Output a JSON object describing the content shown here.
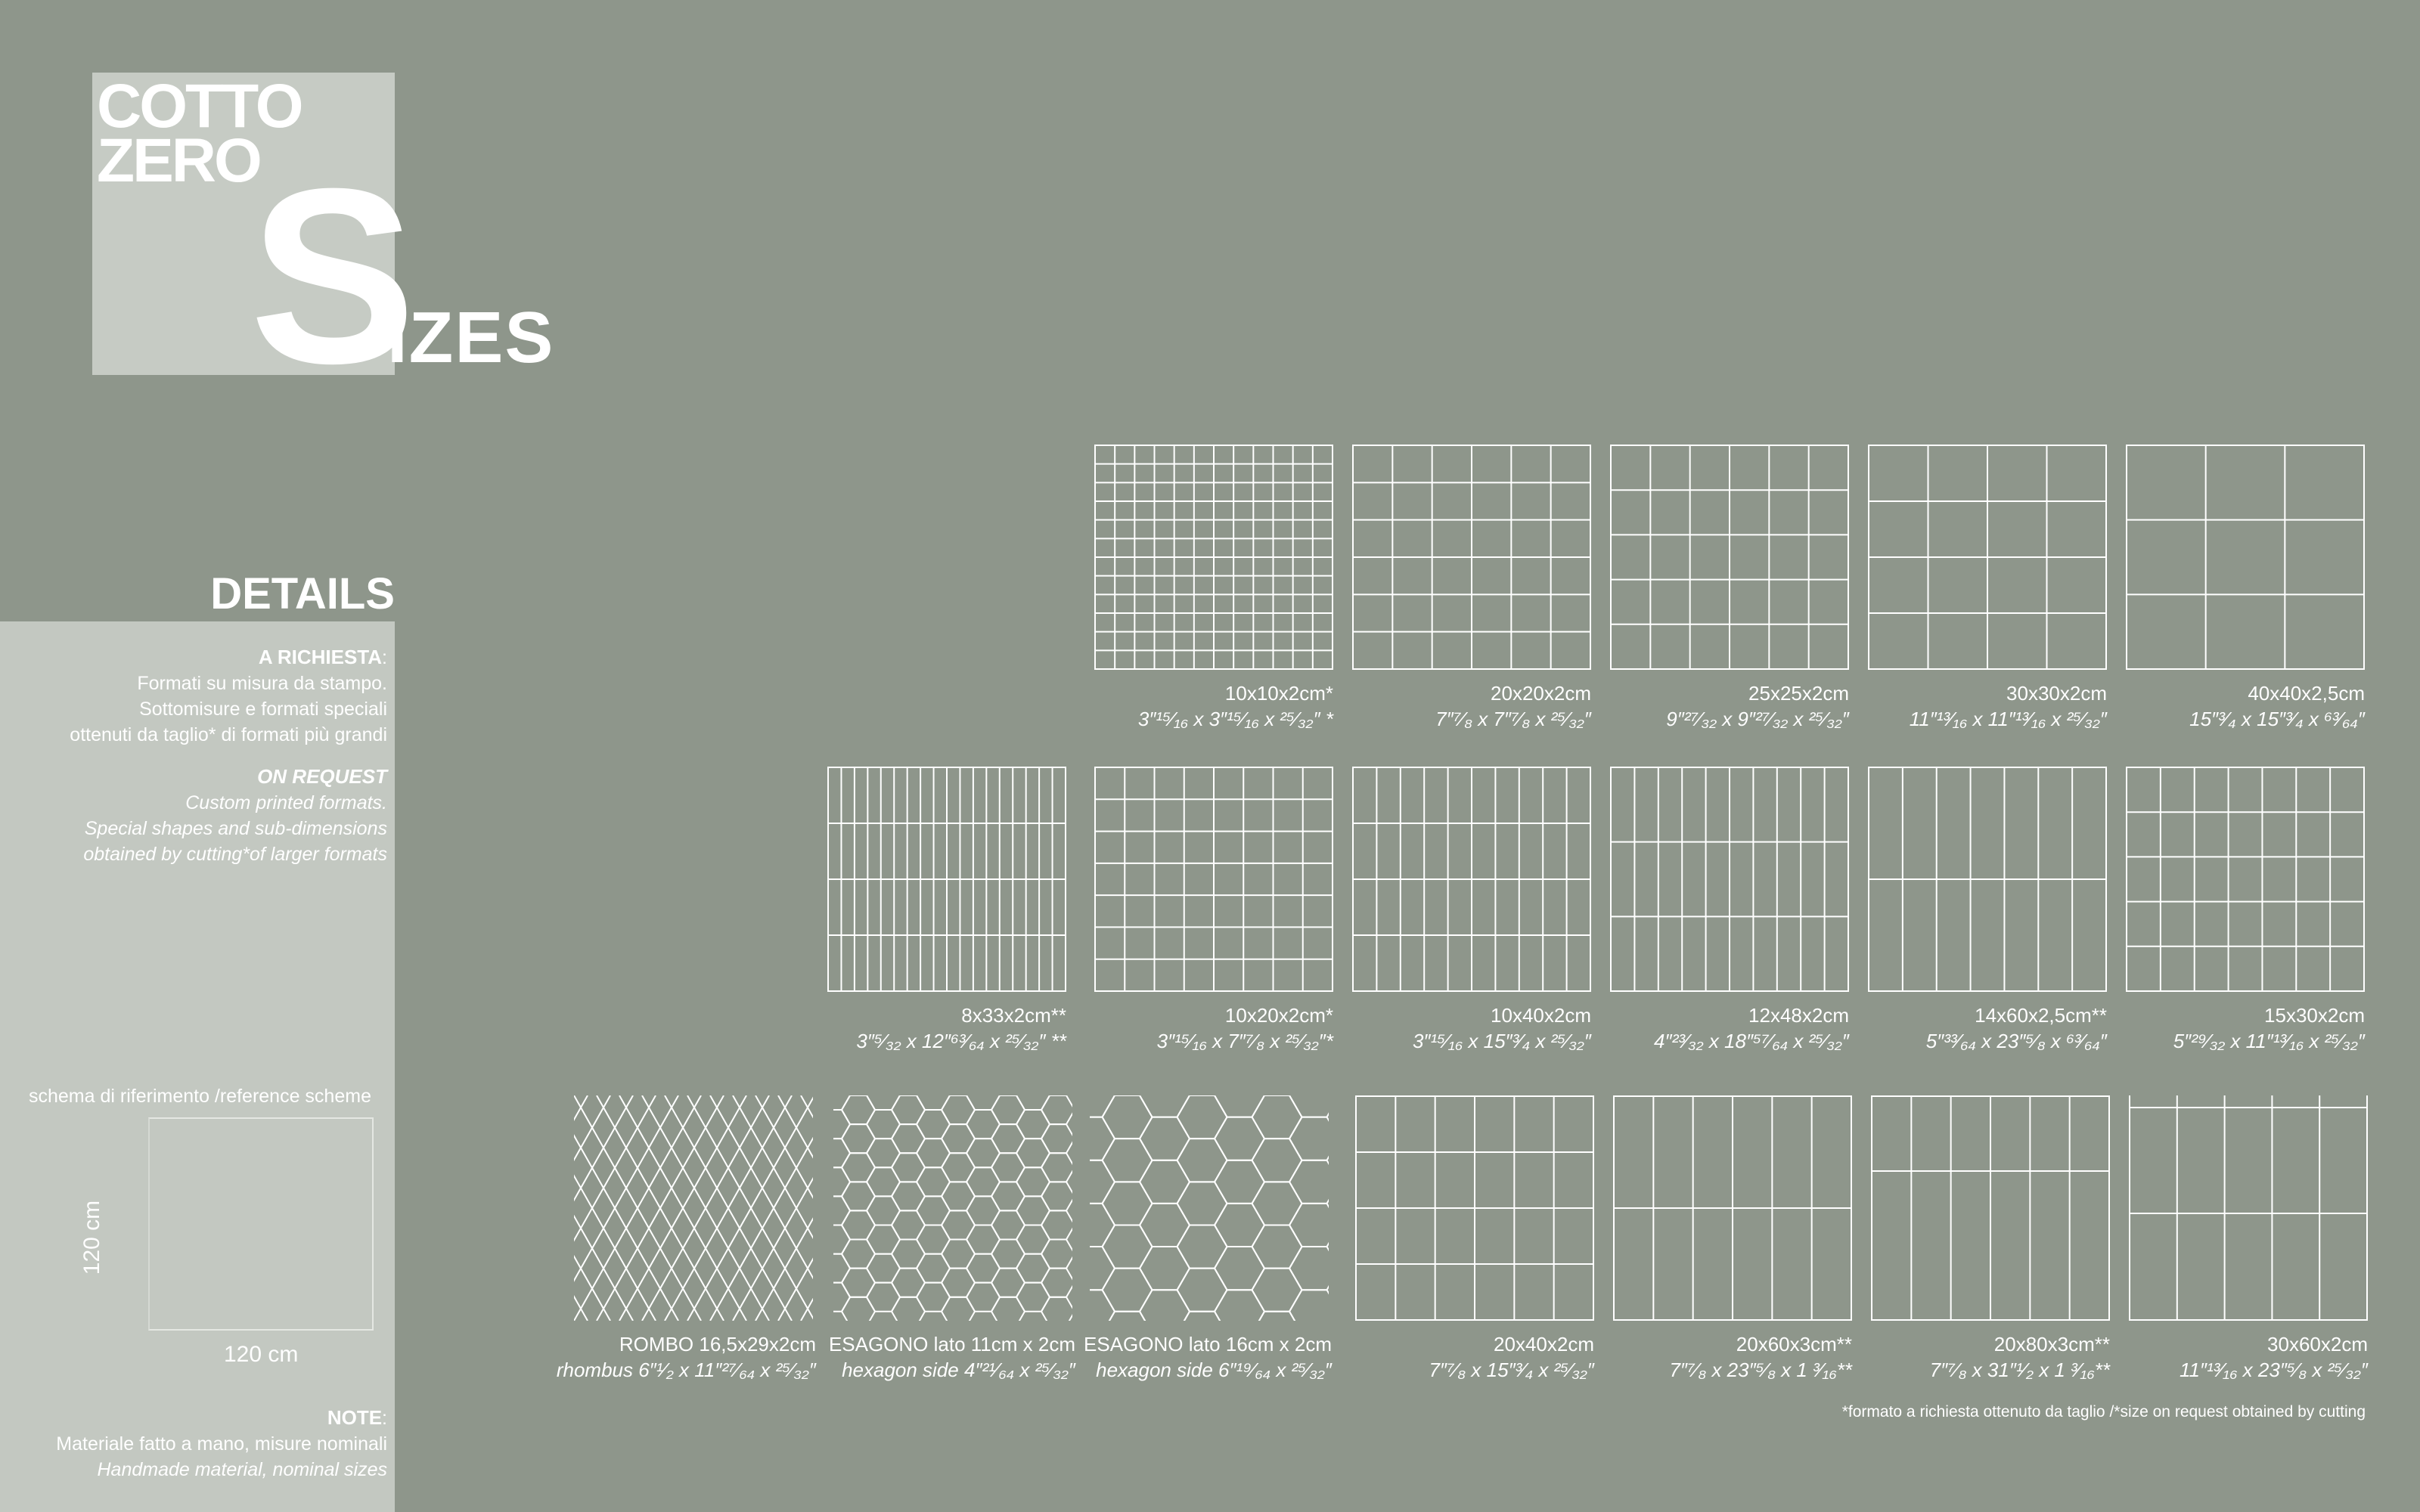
{
  "logo": {
    "line1": "COTTO",
    "line2": "ZERO",
    "big_letter": "S",
    "rest": "IZES"
  },
  "details": {
    "title": "DETAILS",
    "it_heading": "A RICHIESTA",
    "it_lines": [
      "Formati su misura da stampo.",
      "Sottomisure e formati speciali",
      "ottenuti da taglio* di formati più grandi"
    ],
    "en_heading": "ON REQUEST",
    "en_lines": [
      "Custom printed formats.",
      "Special shapes and sub-dimensions",
      "obtained by cutting*of larger formats"
    ],
    "ref_label": "schema di riferimento /reference scheme",
    "ref_height": "120 cm",
    "ref_width": "120 cm",
    "note_heading": "NOTE",
    "note_it": "Materiale fatto a mano, misure nominali",
    "note_en": "Handmade material, nominal sizes"
  },
  "colors": {
    "background": "#8e968b",
    "panel": "#c3c8c1",
    "logo_box": "#c6cbc4",
    "lines": "#ffffff"
  },
  "tiles": [
    {
      "size": "10x10x2cm*",
      "inches": "3″¹⁵⁄₁₆ x 3″¹⁵⁄₁₆ x ²⁵⁄₃₂″ *"
    },
    {
      "size": "20x20x2cm",
      "inches": "7″⁷⁄₈ x 7″⁷⁄₈ x ²⁵⁄₃₂″"
    },
    {
      "size": "25x25x2cm",
      "inches": "9″²⁷⁄₃₂ x 9″²⁷⁄₃₂ x ²⁵⁄₃₂″"
    },
    {
      "size": "30x30x2cm",
      "inches": "11″¹³⁄₁₆ x 11″¹³⁄₁₆ x ²⁵⁄₃₂″"
    },
    {
      "size": "40x40x2,5cm",
      "inches": "15″³⁄₄ x 15″³⁄₄ x ⁶³⁄₆₄″"
    },
    {
      "size": "8x33x2cm**",
      "inches": "3″⁵⁄₃₂ x 12″⁶³⁄₆₄ x ²⁵⁄₃₂″ **"
    },
    {
      "size": "10x20x2cm*",
      "inches": "3″¹⁵⁄₁₆ x 7″⁷⁄₈ x ²⁵⁄₃₂″*"
    },
    {
      "size": "10x40x2cm",
      "inches": "3″¹⁵⁄₁₆ x 15″³⁄₄ x ²⁵⁄₃₂″"
    },
    {
      "size": "12x48x2cm",
      "inches": "4″²³⁄₃₂ x 18″⁵⁷⁄₆₄ x ²⁵⁄₃₂″"
    },
    {
      "size": "14x60x2,5cm**",
      "inches": "5″³³⁄₆₄ x 23″⁵⁄₈ x ⁶³⁄₆₄″"
    },
    {
      "size": "15x30x2cm",
      "inches": "5″²⁹⁄₃₂ x 11″¹³⁄₁₆ x ²⁵⁄₃₂″"
    },
    {
      "size": "ROMBO 16,5x29x2cm",
      "inches": "rhombus 6″¹⁄₂ x 11″²⁷⁄₆₄ x ²⁵⁄₃₂″"
    },
    {
      "size": "ESAGONO lato 11cm x 2cm",
      "inches": "hexagon side 4″²¹⁄₆₄ x ²⁵⁄₃₂″"
    },
    {
      "size": "ESAGONO lato 16cm x 2cm",
      "inches": "hexagon side 6″¹⁹⁄₆₄ x ²⁵⁄₃₂″"
    },
    {
      "size": "20x40x2cm",
      "inches": "7″⁷⁄₈ x 15″³⁄₄ x ²⁵⁄₃₂″"
    },
    {
      "size": "20x60x3cm**",
      "inches": "7″⁷⁄₈ x 23″⁵⁄₈ x 1 ³⁄₁₆**"
    },
    {
      "size": "20x80x3cm**",
      "inches": "7″⁷⁄₈ x 31″¹⁄₂ x 1 ³⁄₁₆**"
    },
    {
      "size": "30x60x2cm",
      "inches": "11″¹³⁄₁₆ x 23″⁵⁄₈ x ²⁵⁄₃₂″"
    }
  ],
  "footnote": "*formato a richiesta ottenuto da taglio /*size on request obtained by cutting"
}
